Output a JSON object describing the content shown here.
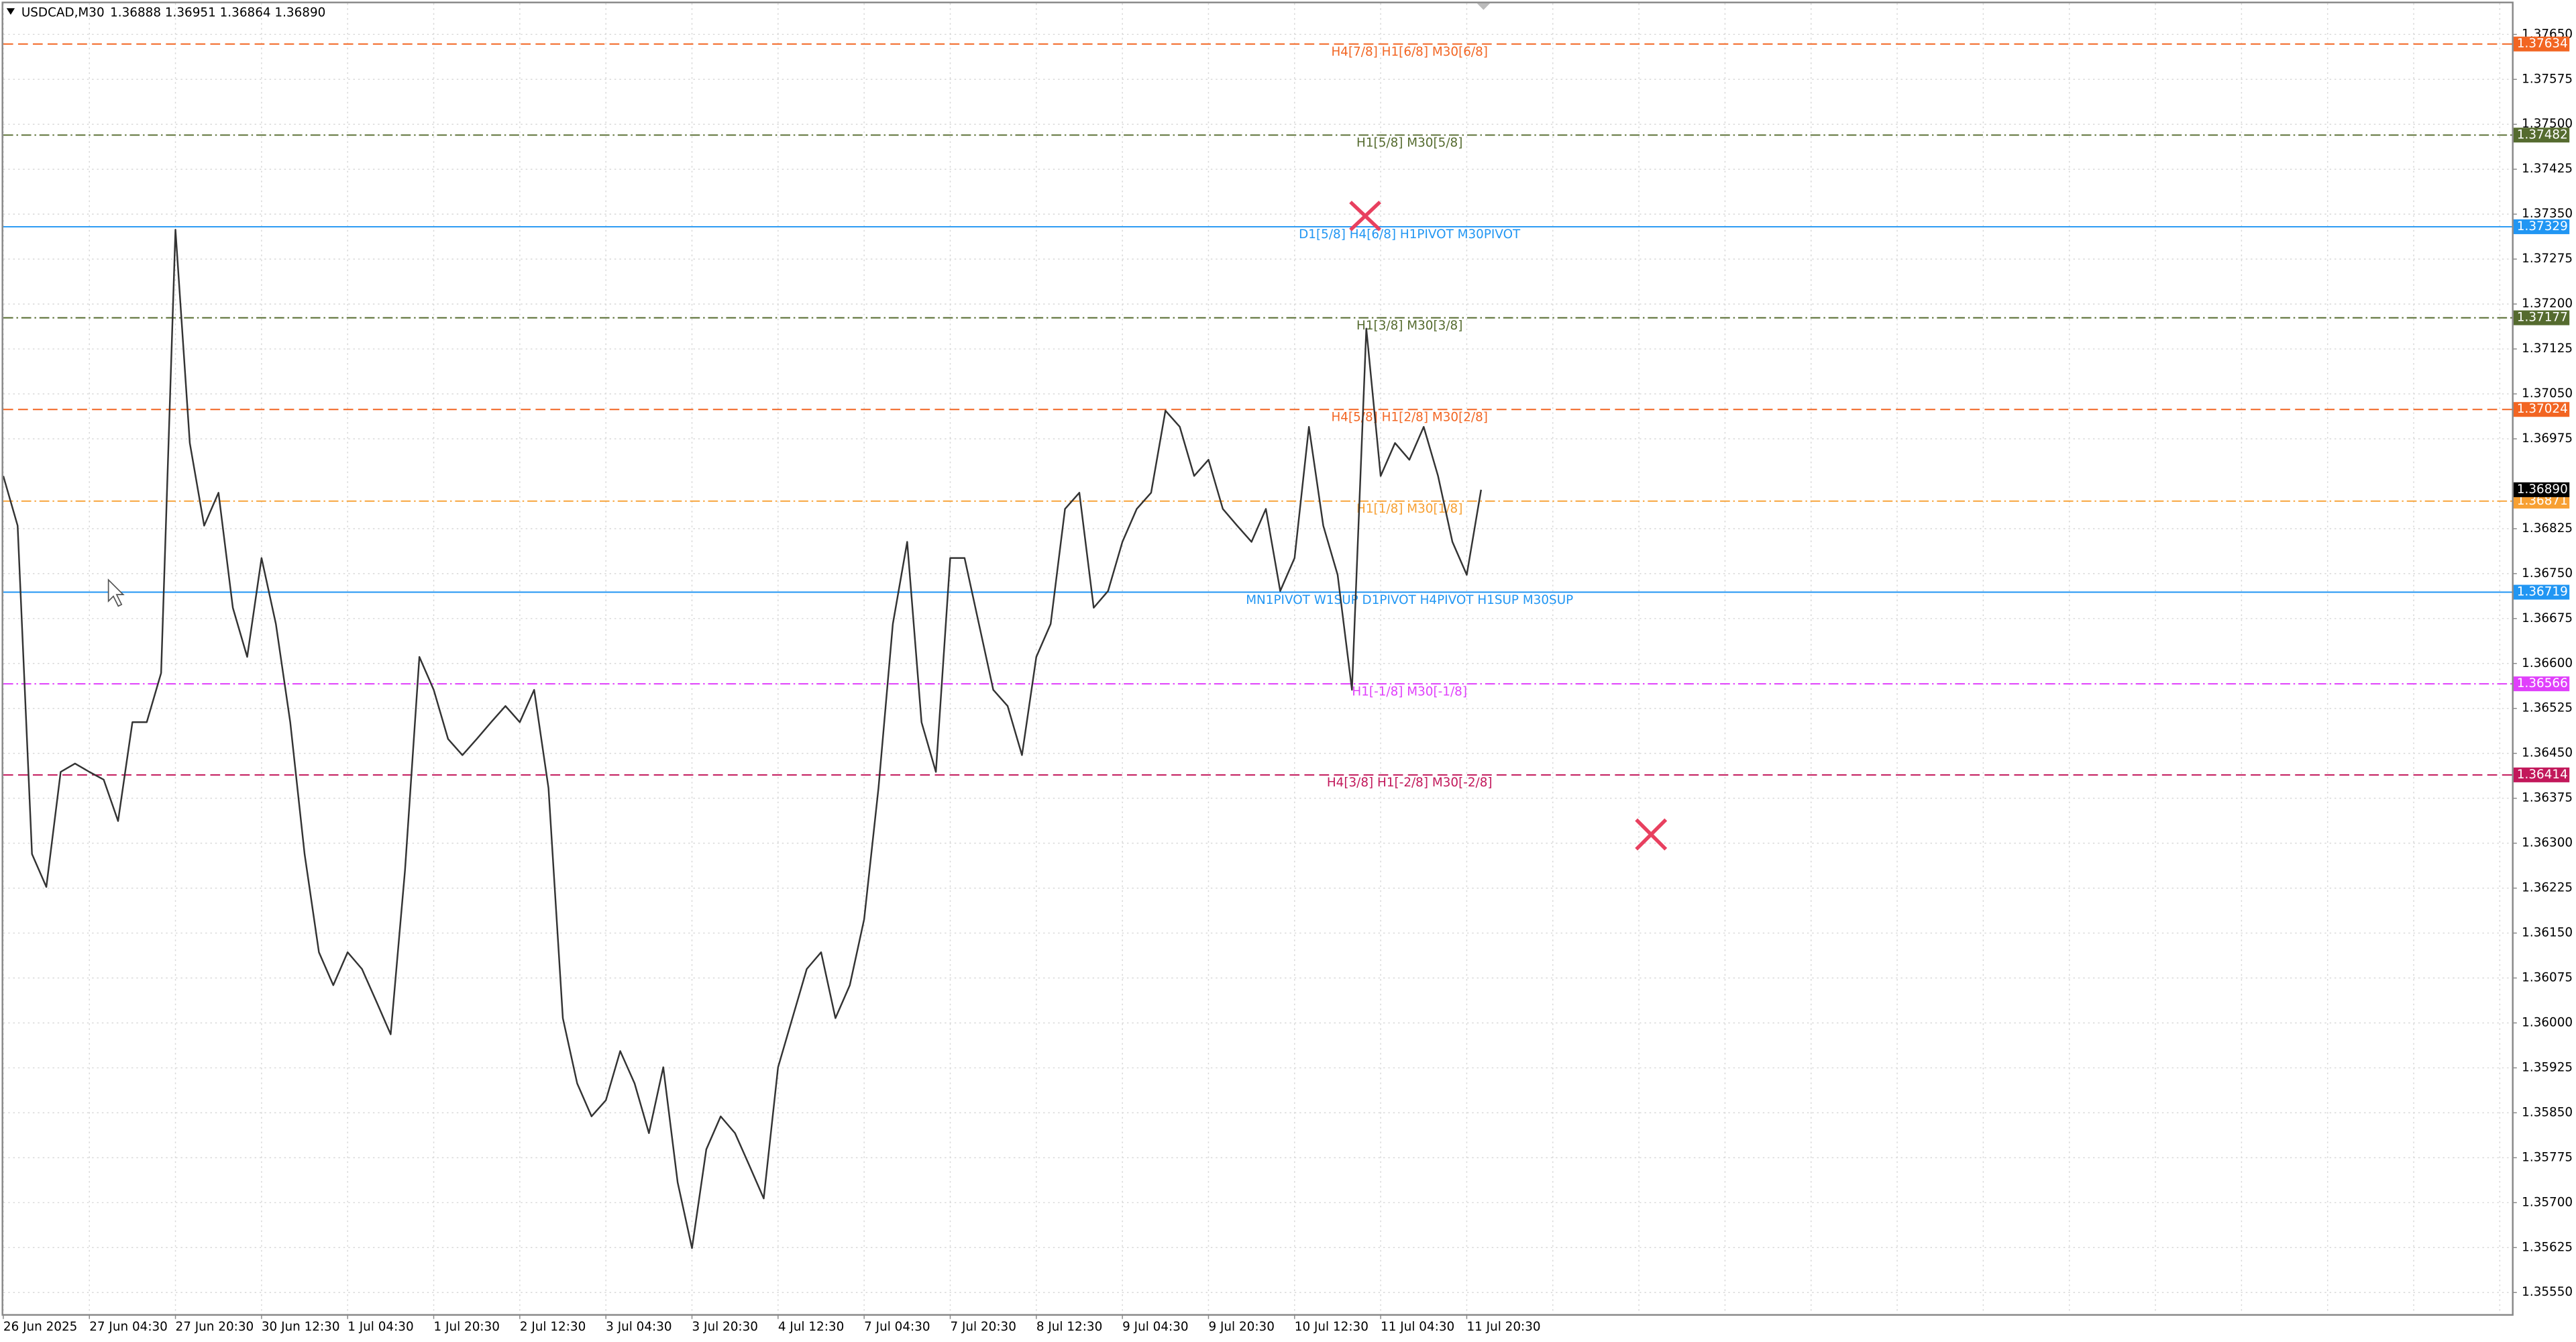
{
  "chart_data": {
    "type": "line",
    "symbol": "USDCAD,M30",
    "ohlc_header": "1.36888 1.36951 1.36864 1.36890",
    "categories": [
      "26 Jun 2025",
      null,
      null,
      null,
      null,
      null,
      "27 Jun 04:30",
      null,
      null,
      null,
      null,
      null,
      "27 Jun 20:30",
      null,
      null,
      null,
      null,
      null,
      "30 Jun 12:30",
      null,
      null,
      null,
      null,
      null,
      "1 Jul 04:30",
      null,
      null,
      null,
      null,
      null,
      "1 Jul 20:30",
      null,
      null,
      null,
      null,
      null,
      "2 Jul 12:30",
      null,
      null,
      null,
      null,
      null,
      "3 Jul 04:30",
      null,
      null,
      null,
      null,
      null,
      "3 Jul 20:30",
      null,
      null,
      null,
      null,
      null,
      "4 Jul 12:30",
      null,
      null,
      null,
      null,
      null,
      "7 Jul 04:30",
      null,
      null,
      null,
      null,
      null,
      "7 Jul 20:30",
      null,
      null,
      null,
      null,
      null,
      "8 Jul 12:30",
      null,
      null,
      null,
      null,
      null,
      "9 Jul 04:30",
      null,
      null,
      null,
      null,
      null,
      "9 Jul 20:30",
      null,
      null,
      null,
      null,
      null,
      "10 Jul 12:30",
      null,
      null,
      null,
      null,
      null,
      "11 Jul 04:30",
      null,
      null,
      null,
      null,
      null,
      "11 Jul 20:30",
      null
    ],
    "series": [
      {
        "color": "#333333",
        "values": [
          1.36913,
          1.3683,
          1.36282,
          1.36227,
          1.36419,
          1.36433,
          1.36419,
          1.36406,
          1.36337,
          1.36502,
          1.36502,
          1.36584,
          1.37324,
          1.36968,
          1.3683,
          1.36885,
          1.36693,
          1.36611,
          1.36776,
          1.36666,
          1.36502,
          1.36282,
          1.36118,
          1.36063,
          1.36118,
          1.3609,
          1.36036,
          1.35981,
          1.36255,
          1.36611,
          1.36556,
          1.36474,
          1.36447,
          1.36474,
          1.36502,
          1.36529,
          1.36502,
          1.36556,
          1.36392,
          1.36008,
          1.35899,
          1.35844,
          1.35871,
          1.35953,
          1.35899,
          1.35816,
          1.35926,
          1.35734,
          1.35624,
          1.35789,
          1.35844,
          1.35816,
          1.35762,
          1.35707,
          1.35926,
          1.36008,
          1.3609,
          1.36118,
          1.36008,
          1.36063,
          1.36173,
          1.36392,
          1.36666,
          1.36803,
          1.36502,
          1.36419,
          1.36776,
          1.36776,
          1.36666,
          1.36556,
          1.36529,
          1.36447,
          1.36611,
          1.36666,
          1.36858,
          1.36885,
          1.36693,
          1.36721,
          1.36803,
          1.36858,
          1.36885,
          1.37022,
          1.36995,
          1.36913,
          1.3694,
          1.36858,
          1.3683,
          1.36803,
          1.36858,
          1.36721,
          1.36776,
          1.36995,
          1.3683,
          1.36748,
          1.36556,
          1.37159,
          1.36913,
          1.36968,
          1.3694,
          1.36995,
          1.36913,
          1.36803,
          1.36748,
          1.3689
        ]
      }
    ],
    "last_price_label": "1.36890",
    "ylim": [
      1.35514,
      1.37702
    ],
    "yticks": [
      {
        "value": 1.3765,
        "label": "1.37650"
      },
      1.37575,
      {
        "value": 1.375,
        "label": "1.37500"
      },
      1.37425,
      {
        "value": 1.3735,
        "label": "1.37350"
      },
      1.37275,
      {
        "value": 1.372,
        "label": "1.37200"
      },
      1.37125,
      {
        "value": 1.3705,
        "label": "1.37050"
      },
      1.36975,
      1.36825,
      {
        "value": 1.3675,
        "label": "1.36750"
      },
      1.36675,
      {
        "value": 1.366,
        "label": "1.36600"
      },
      1.36525,
      {
        "value": 1.3645,
        "label": "1.36450"
      },
      1.36375,
      {
        "value": 1.363,
        "label": "1.36300"
      },
      1.36225,
      {
        "value": 1.3615,
        "label": "1.36150"
      },
      1.36075,
      {
        "value": 1.36,
        "label": "1.36000"
      },
      1.35925,
      {
        "value": 1.3585,
        "label": "1.35850"
      },
      1.35775,
      {
        "value": 1.357,
        "label": "1.35700"
      },
      1.35625,
      {
        "value": 1.3555,
        "label": "1.35550"
      }
    ],
    "grid": true,
    "levels": [
      {
        "price": 1.37634,
        "label": "H4[7/8] H1[6/8] M30[6/8]",
        "color": "#f26522",
        "dash": "dashed"
      },
      {
        "price": 1.37482,
        "label": "H1[5/8] M30[5/8]",
        "color": "#556b2f",
        "dash": "dashdot"
      },
      {
        "price": 1.37329,
        "label": "D1[5/8] H4[6/8] H1PIVOT M30PIVOT",
        "color": "#2196f3",
        "dash": "solid"
      },
      {
        "price": 1.37177,
        "label": "H1[3/8] M30[3/8]",
        "color": "#556b2f",
        "dash": "dashdot"
      },
      {
        "price": 1.37024,
        "label": "H4[5/8] H1[2/8] M30[2/8]",
        "color": "#f26522",
        "dash": "dashed"
      },
      {
        "price": 1.36871,
        "label": "H1[1/8] M30[1/8]",
        "color": "#f7a033",
        "dash": "dashdot"
      },
      {
        "price": 1.36719,
        "label": "MN1PIVOT W1SUP D1PIVOT H4PIVOT H1SUP M30SUP",
        "color": "#2196f3",
        "dash": "solid"
      },
      {
        "price": 1.36566,
        "label": "H1[-1/8] M30[-1/8]",
        "color": "#e040fb",
        "dash": "dashdot"
      },
      {
        "price": 1.36414,
        "label": "H4[3/8] H1[-2/8] M30[-2/8]",
        "color": "#c2185b",
        "dash": "dashed"
      }
    ]
  }
}
